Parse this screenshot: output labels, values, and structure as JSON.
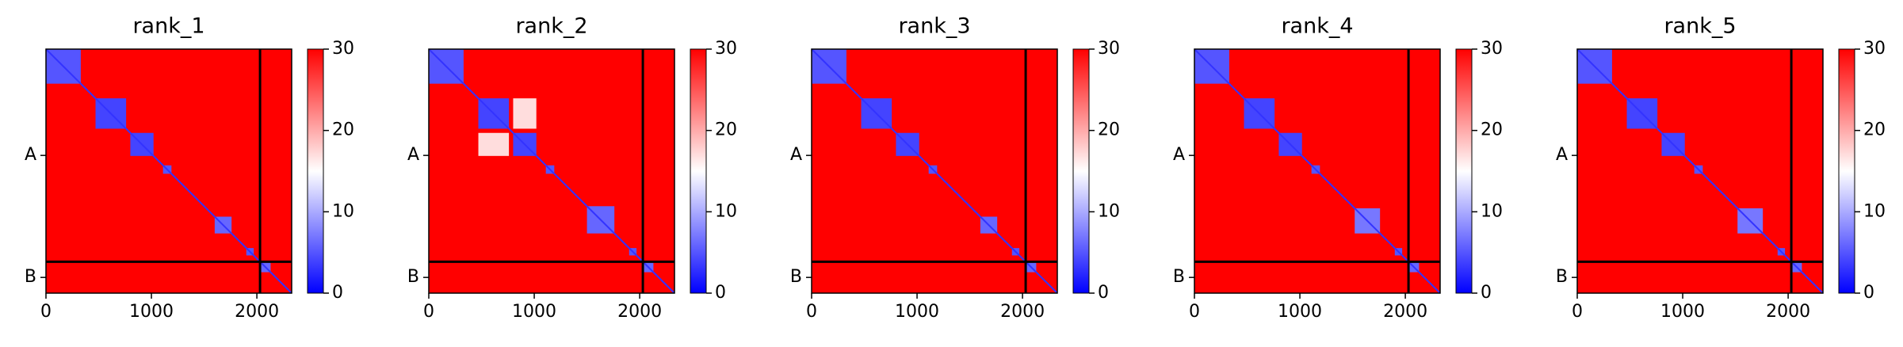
{
  "chart_data": [
    {
      "type": "heatmap",
      "title": "rank_1",
      "xlim": [
        0,
        2330
      ],
      "ylim": [
        2330,
        0
      ],
      "xticks": [
        0,
        1000,
        2000
      ],
      "yticks": [
        {
          "value": 1015,
          "label": "A"
        },
        {
          "value": 2180,
          "label": "B"
        }
      ],
      "clim": [
        0,
        30
      ],
      "cticks": [
        0,
        10,
        20,
        30
      ],
      "background": 30,
      "diagonal": 3,
      "chain_breaks": [
        2030
      ],
      "blocks": [
        {
          "x": [
            0,
            330
          ],
          "y": [
            0,
            330
          ],
          "value": 5
        },
        {
          "x": [
            470,
            760
          ],
          "y": [
            470,
            760
          ],
          "value": 4
        },
        {
          "x": [
            800,
            1020
          ],
          "y": [
            800,
            1020
          ],
          "value": 4
        },
        {
          "x": [
            1110,
            1190
          ],
          "y": [
            1110,
            1190
          ],
          "value": 5
        },
        {
          "x": [
            1600,
            1760
          ],
          "y": [
            1600,
            1760
          ],
          "value": 6
        },
        {
          "x": [
            1900,
            1970
          ],
          "y": [
            1900,
            1970
          ],
          "value": 5
        },
        {
          "x": [
            2030,
            2130
          ],
          "y": [
            2030,
            2130
          ],
          "value": 6
        }
      ]
    },
    {
      "type": "heatmap",
      "title": "rank_2",
      "xlim": [
        0,
        2330
      ],
      "ylim": [
        2330,
        0
      ],
      "xticks": [
        0,
        1000,
        2000
      ],
      "yticks": [
        {
          "value": 1015,
          "label": "A"
        },
        {
          "value": 2180,
          "label": "B"
        }
      ],
      "clim": [
        0,
        30
      ],
      "cticks": [
        0,
        10,
        20,
        30
      ],
      "background": 30,
      "diagonal": 3,
      "chain_breaks": [
        2030
      ],
      "blocks": [
        {
          "x": [
            0,
            330
          ],
          "y": [
            0,
            330
          ],
          "value": 5
        },
        {
          "x": [
            470,
            760
          ],
          "y": [
            800,
            1020
          ],
          "value": 17
        },
        {
          "x": [
            800,
            1020
          ],
          "y": [
            470,
            760
          ],
          "value": 17
        },
        {
          "x": [
            470,
            760
          ],
          "y": [
            470,
            760
          ],
          "value": 4
        },
        {
          "x": [
            800,
            1020
          ],
          "y": [
            800,
            1020
          ],
          "value": 4
        },
        {
          "x": [
            1110,
            1190
          ],
          "y": [
            1110,
            1190
          ],
          "value": 5
        },
        {
          "x": [
            1500,
            1760
          ],
          "y": [
            1500,
            1760
          ],
          "value": 6
        },
        {
          "x": [
            1900,
            1970
          ],
          "y": [
            1900,
            1970
          ],
          "value": 5
        },
        {
          "x": [
            2030,
            2130
          ],
          "y": [
            2030,
            2130
          ],
          "value": 6
        }
      ]
    },
    {
      "type": "heatmap",
      "title": "rank_3",
      "xlim": [
        0,
        2330
      ],
      "ylim": [
        2330,
        0
      ],
      "xticks": [
        0,
        1000,
        2000
      ],
      "yticks": [
        {
          "value": 1015,
          "label": "A"
        },
        {
          "value": 2180,
          "label": "B"
        }
      ],
      "clim": [
        0,
        30
      ],
      "cticks": [
        0,
        10,
        20,
        30
      ],
      "background": 30,
      "diagonal": 3,
      "chain_breaks": [
        2030
      ],
      "blocks": [
        {
          "x": [
            0,
            330
          ],
          "y": [
            0,
            330
          ],
          "value": 5
        },
        {
          "x": [
            470,
            760
          ],
          "y": [
            470,
            760
          ],
          "value": 4
        },
        {
          "x": [
            800,
            1020
          ],
          "y": [
            800,
            1020
          ],
          "value": 4
        },
        {
          "x": [
            1110,
            1190
          ],
          "y": [
            1110,
            1190
          ],
          "value": 5
        },
        {
          "x": [
            1600,
            1760
          ],
          "y": [
            1600,
            1760
          ],
          "value": 6
        },
        {
          "x": [
            1900,
            1970
          ],
          "y": [
            1900,
            1970
          ],
          "value": 5
        },
        {
          "x": [
            2030,
            2130
          ],
          "y": [
            2030,
            2130
          ],
          "value": 6
        }
      ]
    },
    {
      "type": "heatmap",
      "title": "rank_4",
      "xlim": [
        0,
        2330
      ],
      "ylim": [
        2330,
        0
      ],
      "xticks": [
        0,
        1000,
        2000
      ],
      "yticks": [
        {
          "value": 1015,
          "label": "A"
        },
        {
          "value": 2180,
          "label": "B"
        }
      ],
      "clim": [
        0,
        30
      ],
      "cticks": [
        0,
        10,
        20,
        30
      ],
      "background": 30,
      "diagonal": 3,
      "chain_breaks": [
        2030
      ],
      "blocks": [
        {
          "x": [
            0,
            330
          ],
          "y": [
            0,
            330
          ],
          "value": 5
        },
        {
          "x": [
            470,
            760
          ],
          "y": [
            470,
            760
          ],
          "value": 4
        },
        {
          "x": [
            800,
            1020
          ],
          "y": [
            800,
            1020
          ],
          "value": 4
        },
        {
          "x": [
            1110,
            1190
          ],
          "y": [
            1110,
            1190
          ],
          "value": 5
        },
        {
          "x": [
            1520,
            1760
          ],
          "y": [
            1520,
            1760
          ],
          "value": 7
        },
        {
          "x": [
            1900,
            1970
          ],
          "y": [
            1900,
            1970
          ],
          "value": 5
        },
        {
          "x": [
            2030,
            2130
          ],
          "y": [
            2030,
            2130
          ],
          "value": 6
        }
      ]
    },
    {
      "type": "heatmap",
      "title": "rank_5",
      "xlim": [
        0,
        2330
      ],
      "ylim": [
        2330,
        0
      ],
      "xticks": [
        0,
        1000,
        2000
      ],
      "yticks": [
        {
          "value": 1015,
          "label": "A"
        },
        {
          "value": 2180,
          "label": "B"
        }
      ],
      "clim": [
        0,
        30
      ],
      "cticks": [
        0,
        10,
        20,
        30
      ],
      "background": 30,
      "diagonal": 3,
      "chain_breaks": [
        2030
      ],
      "blocks": [
        {
          "x": [
            0,
            330
          ],
          "y": [
            0,
            330
          ],
          "value": 5
        },
        {
          "x": [
            470,
            760
          ],
          "y": [
            470,
            760
          ],
          "value": 4
        },
        {
          "x": [
            800,
            1020
          ],
          "y": [
            800,
            1020
          ],
          "value": 4
        },
        {
          "x": [
            1110,
            1190
          ],
          "y": [
            1110,
            1190
          ],
          "value": 5
        },
        {
          "x": [
            1520,
            1760
          ],
          "y": [
            1520,
            1760
          ],
          "value": 7
        },
        {
          "x": [
            1900,
            1970
          ],
          "y": [
            1900,
            1970
          ],
          "value": 5
        },
        {
          "x": [
            2030,
            2130
          ],
          "y": [
            2030,
            2130
          ],
          "value": 6
        }
      ]
    }
  ]
}
